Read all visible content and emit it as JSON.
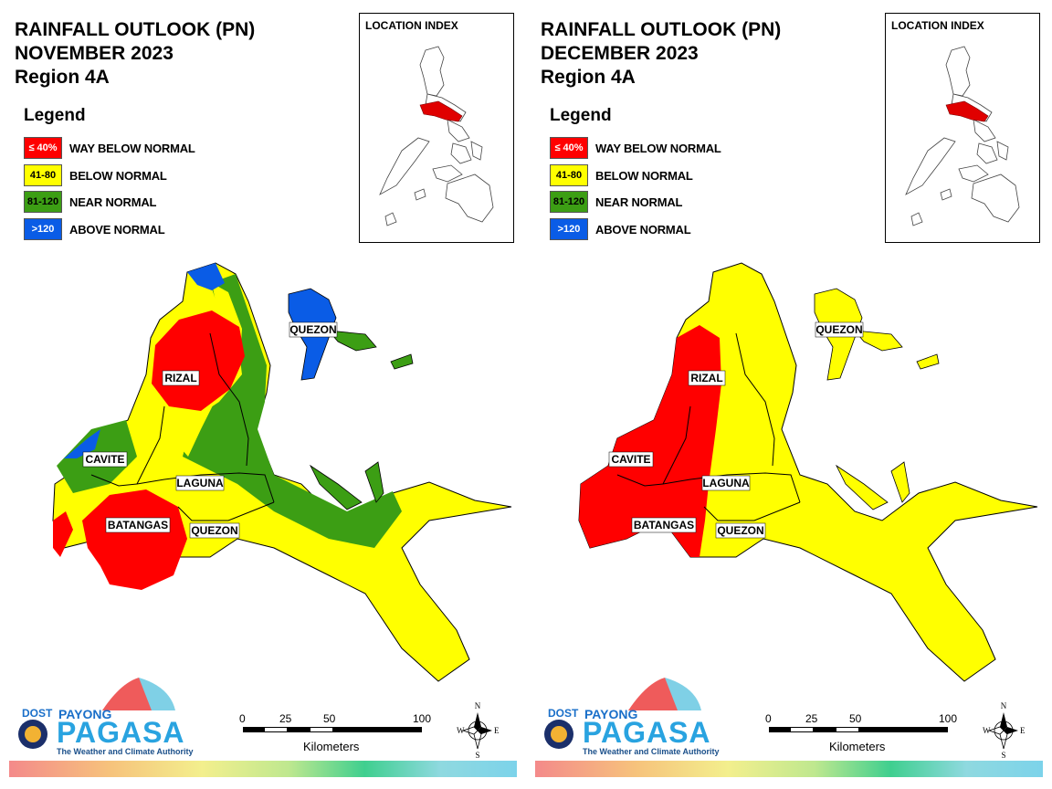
{
  "colors": {
    "way_below": "#ff0000",
    "below": "#ffff00",
    "near": "#3c9e14",
    "above": "#0a5ce6"
  },
  "legend": {
    "title": "Legend",
    "items": [
      {
        "swatch": "≤ 40%",
        "label": "WAY BELOW NORMAL",
        "color": "#ff0000",
        "text_color": "#ffffff"
      },
      {
        "swatch": "41-80",
        "label": "BELOW NORMAL",
        "color": "#ffff00",
        "text_color": "#000000"
      },
      {
        "swatch": "81-120",
        "label": "NEAR NORMAL",
        "color": "#3c9e14",
        "text_color": "#000000"
      },
      {
        "swatch": ">120",
        "label": "ABOVE NORMAL",
        "color": "#0a5ce6",
        "text_color": "#ffffff"
      }
    ]
  },
  "maps": [
    {
      "title_line1": "RAINFALL OUTLOOK (PN)",
      "title_line2": "NOVEMBER 2023",
      "title_line3": "Region 4A",
      "location_index": "LOCATION INDEX",
      "provinces": {
        "rizal": "RIZAL",
        "cavite": "CAVITE",
        "laguna": "LAGUNA",
        "batangas": "BATANGAS",
        "quezon_main": "QUEZON",
        "quezon_north": "QUEZON"
      },
      "category_by_area": {
        "Rizal": "WAY BELOW NORMAL / NEAR NORMAL / BELOW NORMAL / ABOVE NORMAL",
        "Cavite": "NEAR NORMAL / ABOVE NORMAL / BELOW NORMAL",
        "Laguna": "NEAR NORMAL / BELOW NORMAL",
        "Batangas": "WAY BELOW NORMAL / BELOW NORMAL",
        "Quezon": "BELOW NORMAL / NEAR NORMAL / ABOVE NORMAL"
      }
    },
    {
      "title_line1": "RAINFALL OUTLOOK (PN)",
      "title_line2": "DECEMBER 2023",
      "title_line3": "Region 4A",
      "location_index": "LOCATION INDEX",
      "provinces": {
        "rizal": "RIZAL",
        "cavite": "CAVITE",
        "laguna": "LAGUNA",
        "batangas": "BATANGAS",
        "quezon_main": "QUEZON",
        "quezon_north": "QUEZON"
      },
      "category_by_area": {
        "Rizal": "WAY BELOW NORMAL / BELOW NORMAL",
        "Cavite": "WAY BELOW NORMAL",
        "Laguna": "WAY BELOW NORMAL / BELOW NORMAL",
        "Batangas": "WAY BELOW NORMAL / BELOW NORMAL",
        "Quezon": "BELOW NORMAL"
      }
    }
  ],
  "scale": {
    "ticks": [
      "0",
      "25",
      "50",
      "100"
    ],
    "unit": "Kilometers"
  },
  "compass": {
    "n": "N",
    "s": "S",
    "e": "E",
    "w": "W"
  },
  "logo": {
    "dost": "DOST",
    "payong": "PAYONG",
    "pagasa": "PAGASA",
    "tagline": "The Weather and Climate Authority"
  }
}
